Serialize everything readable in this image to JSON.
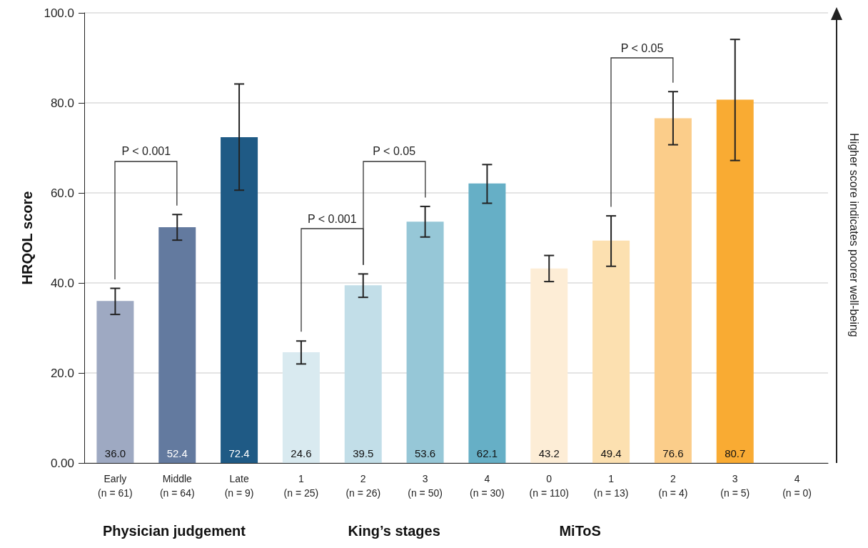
{
  "chart_data": {
    "type": "bar",
    "ylabel": "HRQOL score",
    "y2label": "Higher score indicates poorer well-being",
    "categories": [
      "Early\n(n = 61)",
      "Middle\n(n = 64)",
      "Late\n(n = 9)",
      "1\n(n = 25)",
      "2\n(n = 26)",
      "3\n(n = 50)",
      "4\n(n = 30)",
      "0\n(n = 110)",
      "1\n(n = 13)",
      "2\n(n = 4)",
      "3\n(n = 5)",
      "4\n(n = 0)"
    ],
    "values": [
      36.0,
      52.4,
      72.4,
      24.6,
      39.5,
      53.6,
      62.1,
      43.2,
      49.4,
      76.6,
      80.7,
      null
    ],
    "value_labels": [
      "36.0",
      "52.4",
      "72.4",
      "24.6",
      "39.5",
      "53.6",
      "62.1",
      "43.2",
      "49.4",
      "76.6",
      "80.7",
      null
    ],
    "colors": [
      "#9ea9c2",
      "#637a9f",
      "#1f5a85",
      "#d9eaf0",
      "#c2dee8",
      "#96c7d7",
      "#66afc6",
      "#fdedd6",
      "#fce0b0",
      "#fbcd8a",
      "#f9ab33",
      "#f9ab33"
    ],
    "errors": [
      [
        33.0,
        38.8
      ],
      [
        49.5,
        55.2
      ],
      [
        60.6,
        84.2
      ],
      [
        22.0,
        27.1
      ],
      [
        36.8,
        42.0
      ],
      [
        50.2,
        57.0
      ],
      [
        57.7,
        66.3
      ],
      [
        40.3,
        46.1
      ],
      [
        43.7,
        54.9
      ],
      [
        70.7,
        82.5
      ],
      [
        67.2,
        94.1
      ],
      null
    ],
    "ylim": [
      0,
      100
    ],
    "yticks": [
      {
        "value": 0,
        "label": "0.00"
      },
      {
        "value": 20,
        "label": "20.0"
      },
      {
        "value": 40,
        "label": "40.0"
      },
      {
        "value": 60,
        "label": "60.0"
      },
      {
        "value": 80,
        "label": "80.0"
      },
      {
        "value": 100,
        "label": "100.0"
      }
    ],
    "grid": "y",
    "annotations": [
      "P < 0.001",
      "P < 0.001",
      "P < 0.05",
      "P < 0.05",
      "Physician judgement",
      "King’s stages",
      "MiToS"
    ]
  }
}
